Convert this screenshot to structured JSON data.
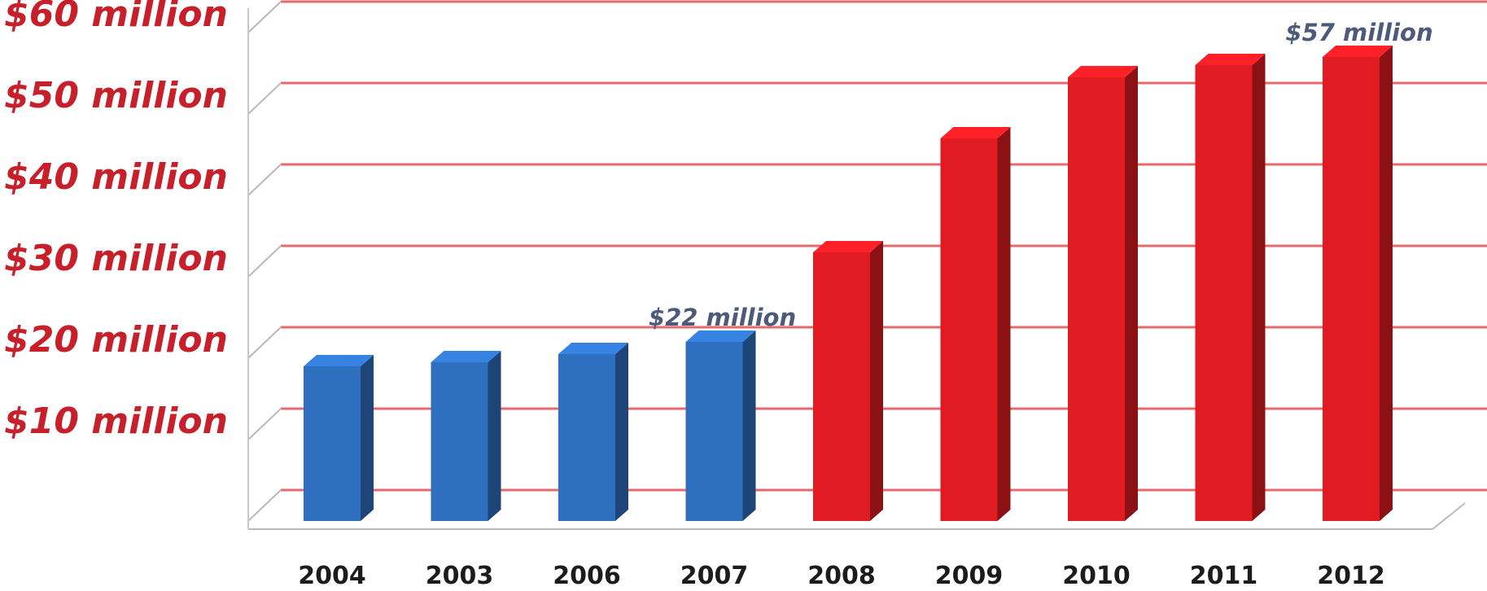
{
  "chart_data": {
    "type": "bar",
    "title": "",
    "xlabel": "",
    "ylabel": "",
    "categories": [
      "2004",
      "2003",
      "2006",
      "2007",
      "2008",
      "2009",
      "2010",
      "2011",
      "2012"
    ],
    "values": [
      19,
      19.5,
      20.5,
      22,
      33,
      47,
      54.5,
      56,
      57
    ],
    "bar_colors": [
      "#2f6fc0",
      "#2f6fc0",
      "#2f6fc0",
      "#2f6fc0",
      "#e11b22",
      "#e11b22",
      "#e11b22",
      "#e11b22",
      "#e11b22"
    ],
    "y_tick_values": [
      10,
      20,
      30,
      40,
      50,
      60
    ],
    "y_tick_labels": [
      "$10 million",
      "$20 million",
      "$30 million",
      "$40 million",
      "$50 million",
      "$60 million"
    ],
    "ylim": [
      0,
      63
    ],
    "grid": true,
    "gridline_color": "#e25055",
    "data_labels": [
      {
        "category": "2007",
        "text": "$22 million"
      },
      {
        "category": "2012",
        "text": "$57 million"
      }
    ]
  }
}
